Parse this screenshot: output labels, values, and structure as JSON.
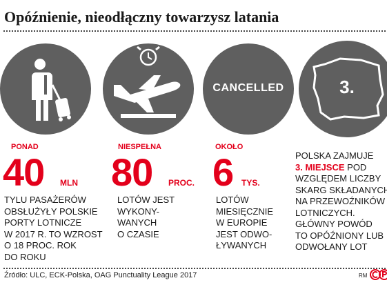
{
  "title": "Opóźnienie, nieodłączny towarzysz latania",
  "cancelled_label": "CANCELLED",
  "ranking_number": "3.",
  "stats": [
    {
      "lead": "PONAD",
      "value": "40",
      "unit": "MLN",
      "desc": [
        "TYLU PASAŻERÓW",
        "OBSŁUŻYŁY POLSKIE",
        "PORTY LOTNICZE",
        "W 2017 R. TO WZROST",
        "O 18 PROC. ROK",
        "DO ROKU"
      ]
    },
    {
      "lead": "NIESPEŁNA",
      "value": "80",
      "unit": "PROC.",
      "desc": [
        "LOTÓW JEST",
        "WYKONY-",
        "WANYCH",
        "O CZASIE"
      ]
    },
    {
      "lead": "OKOŁO",
      "value": "6",
      "unit": "TYS.",
      "desc": [
        "LOTÓW",
        "MIESIĘCZNIE",
        "W EUROPIE",
        "JEST ODWO-",
        "ŁYWANYCH"
      ]
    }
  ],
  "ranking": {
    "line1": "POLSKA ZAJMUJE",
    "highlight": "3. MIEJSCE",
    "line2_rest": " POD",
    "lines": [
      "WZGLĘDEM LICZBY",
      "SKARG SKŁADANYCH",
      "NA PRZEWOŹNIKÓW",
      "LOTNICZYCH.",
      "GŁÓWNY POWÓD",
      "TO OPÓŹNIONY LUB",
      "ODWOŁANY LOT"
    ]
  },
  "source": "Źródło: ULC, ECK-Polska, OAG Punctuality League 2017",
  "credit": "RM",
  "icons": [
    "traveler-with-suitcase-icon",
    "airplane-takeoff-icon",
    "alarm-clock-icon",
    "poland-map-icon"
  ],
  "colors": {
    "accent": "#e3001b",
    "circle": "#5f5f5f",
    "text": "#1a1a1a"
  }
}
